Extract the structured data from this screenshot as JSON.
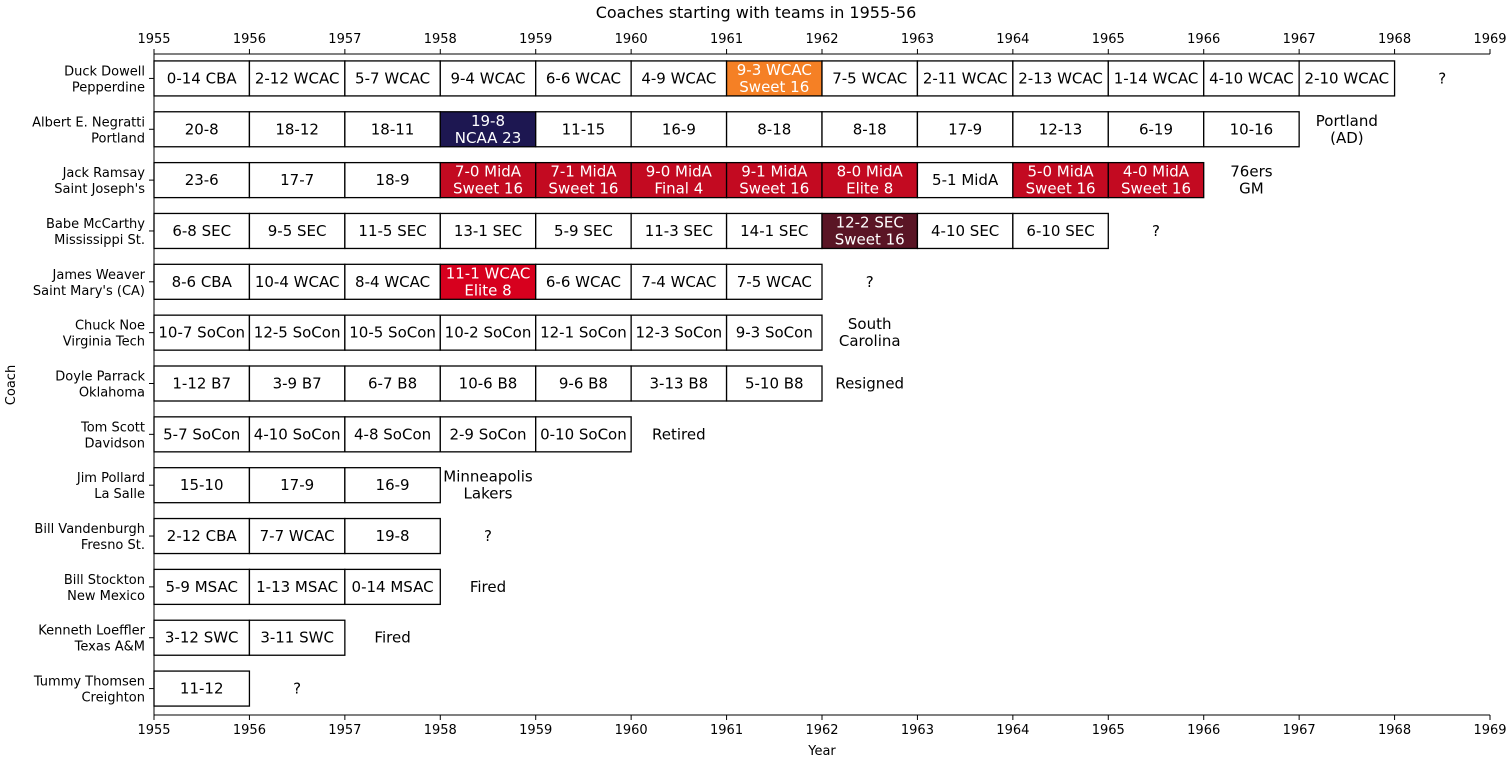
{
  "chart_data": {
    "type": "timeline",
    "title": "Coaches starting with teams in 1955-56",
    "xlabel": "Year",
    "ylabel": "Coach",
    "xlim": [
      1955,
      1969
    ],
    "x_ticks": [
      "1955",
      "1956",
      "1957",
      "1958",
      "1959",
      "1960",
      "1961",
      "1962",
      "1963",
      "1964",
      "1965",
      "1966",
      "1967",
      "1968",
      "1969"
    ],
    "colors": {
      "default": "#ffffff",
      "sweet16_wcac": "#f58025",
      "ncaa23": "#1d1751",
      "midA": "#c30a21",
      "sec_sweet16": "#5a1525",
      "wcac_elite8": "#d7001e"
    },
    "coaches": [
      {
        "name": "Duck Dowell",
        "team": "Pepperdine",
        "after": "?",
        "seasons": [
          {
            "start": 1955,
            "text": [
              "0-14 CBA"
            ]
          },
          {
            "start": 1956,
            "text": [
              "2-12 WCAC"
            ]
          },
          {
            "start": 1957,
            "text": [
              "5-7 WCAC"
            ]
          },
          {
            "start": 1958,
            "text": [
              "9-4 WCAC"
            ]
          },
          {
            "start": 1959,
            "text": [
              "6-6 WCAC"
            ]
          },
          {
            "start": 1960,
            "text": [
              "4-9 WCAC"
            ]
          },
          {
            "start": 1961,
            "text": [
              "9-3 WCAC",
              "Sweet 16"
            ],
            "color": "#f58025",
            "light": true
          },
          {
            "start": 1962,
            "text": [
              "7-5 WCAC"
            ]
          },
          {
            "start": 1963,
            "text": [
              "2-11 WCAC"
            ]
          },
          {
            "start": 1964,
            "text": [
              "2-13 WCAC"
            ]
          },
          {
            "start": 1965,
            "text": [
              "1-14 WCAC"
            ]
          },
          {
            "start": 1966,
            "text": [
              "4-10 WCAC"
            ]
          },
          {
            "start": 1967,
            "text": [
              "2-10 WCAC"
            ]
          }
        ]
      },
      {
        "name": "Albert E. Negratti",
        "team": "Portland",
        "after": "Portland\n(AD)",
        "seasons": [
          {
            "start": 1955,
            "text": [
              "20-8"
            ]
          },
          {
            "start": 1956,
            "text": [
              "18-12"
            ]
          },
          {
            "start": 1957,
            "text": [
              "18-11"
            ]
          },
          {
            "start": 1958,
            "text": [
              "19-8",
              "NCAA 23"
            ],
            "color": "#1d1751",
            "light": true
          },
          {
            "start": 1959,
            "text": [
              "11-15"
            ]
          },
          {
            "start": 1960,
            "text": [
              "16-9"
            ]
          },
          {
            "start": 1961,
            "text": [
              "8-18"
            ]
          },
          {
            "start": 1962,
            "text": [
              "8-18"
            ]
          },
          {
            "start": 1963,
            "text": [
              "17-9"
            ]
          },
          {
            "start": 1964,
            "text": [
              "12-13"
            ]
          },
          {
            "start": 1965,
            "text": [
              "6-19"
            ]
          },
          {
            "start": 1966,
            "text": [
              "10-16"
            ]
          }
        ]
      },
      {
        "name": "Jack Ramsay",
        "team": "Saint Joseph's",
        "after": "76ers\nGM",
        "seasons": [
          {
            "start": 1955,
            "text": [
              "23-6"
            ]
          },
          {
            "start": 1956,
            "text": [
              "17-7"
            ]
          },
          {
            "start": 1957,
            "text": [
              "18-9"
            ]
          },
          {
            "start": 1958,
            "text": [
              "7-0 MidA",
              "Sweet 16"
            ],
            "color": "#c30a21",
            "light": true
          },
          {
            "start": 1959,
            "text": [
              "7-1 MidA",
              "Sweet 16"
            ],
            "color": "#c30a21",
            "light": true
          },
          {
            "start": 1960,
            "text": [
              "9-0 MidA",
              "Final 4"
            ],
            "color": "#c30a21",
            "light": true
          },
          {
            "start": 1961,
            "text": [
              "9-1 MidA",
              "Sweet 16"
            ],
            "color": "#c30a21",
            "light": true
          },
          {
            "start": 1962,
            "text": [
              "8-0 MidA",
              "Elite 8"
            ],
            "color": "#c30a21",
            "light": true
          },
          {
            "start": 1963,
            "text": [
              "5-1 MidA"
            ]
          },
          {
            "start": 1964,
            "text": [
              "5-0 MidA",
              "Sweet 16"
            ],
            "color": "#c30a21",
            "light": true
          },
          {
            "start": 1965,
            "text": [
              "4-0 MidA",
              "Sweet 16"
            ],
            "color": "#c30a21",
            "light": true
          }
        ]
      },
      {
        "name": "Babe McCarthy",
        "team": "Mississippi St.",
        "after": "?",
        "seasons": [
          {
            "start": 1955,
            "text": [
              "6-8 SEC"
            ]
          },
          {
            "start": 1956,
            "text": [
              "9-5 SEC"
            ]
          },
          {
            "start": 1957,
            "text": [
              "11-5 SEC"
            ]
          },
          {
            "start": 1958,
            "text": [
              "13-1 SEC"
            ]
          },
          {
            "start": 1959,
            "text": [
              "5-9 SEC"
            ]
          },
          {
            "start": 1960,
            "text": [
              "11-3 SEC"
            ]
          },
          {
            "start": 1961,
            "text": [
              "14-1 SEC"
            ]
          },
          {
            "start": 1962,
            "text": [
              "12-2 SEC",
              "Sweet 16"
            ],
            "color": "#5a1525",
            "light": true
          },
          {
            "start": 1963,
            "text": [
              "4-10 SEC"
            ]
          },
          {
            "start": 1964,
            "text": [
              "6-10 SEC"
            ]
          }
        ]
      },
      {
        "name": "James Weaver",
        "team": "Saint Mary's (CA)",
        "after": "?",
        "seasons": [
          {
            "start": 1955,
            "text": [
              "8-6 CBA"
            ]
          },
          {
            "start": 1956,
            "text": [
              "10-4 WCAC"
            ]
          },
          {
            "start": 1957,
            "text": [
              "8-4 WCAC"
            ]
          },
          {
            "start": 1958,
            "text": [
              "11-1 WCAC",
              "Elite 8"
            ],
            "color": "#d7001e",
            "light": true
          },
          {
            "start": 1959,
            "text": [
              "6-6 WCAC"
            ]
          },
          {
            "start": 1960,
            "text": [
              "7-4 WCAC"
            ]
          },
          {
            "start": 1961,
            "text": [
              "7-5 WCAC"
            ]
          }
        ]
      },
      {
        "name": "Chuck Noe",
        "team": "Virginia Tech",
        "after": "South\nCarolina",
        "seasons": [
          {
            "start": 1955,
            "text": [
              "10-7 SoCon"
            ]
          },
          {
            "start": 1956,
            "text": [
              "12-5 SoCon"
            ]
          },
          {
            "start": 1957,
            "text": [
              "10-5 SoCon"
            ]
          },
          {
            "start": 1958,
            "text": [
              "10-2 SoCon"
            ]
          },
          {
            "start": 1959,
            "text": [
              "12-1 SoCon"
            ]
          },
          {
            "start": 1960,
            "text": [
              "12-3 SoCon"
            ]
          },
          {
            "start": 1961,
            "text": [
              "9-3 SoCon"
            ]
          }
        ]
      },
      {
        "name": "Doyle Parrack",
        "team": "Oklahoma",
        "after": "Resigned",
        "seasons": [
          {
            "start": 1955,
            "text": [
              "1-12 B7"
            ]
          },
          {
            "start": 1956,
            "text": [
              "3-9 B7"
            ]
          },
          {
            "start": 1957,
            "text": [
              "6-7 B8"
            ]
          },
          {
            "start": 1958,
            "text": [
              "10-6 B8"
            ]
          },
          {
            "start": 1959,
            "text": [
              "9-6 B8"
            ]
          },
          {
            "start": 1960,
            "text": [
              "3-13 B8"
            ]
          },
          {
            "start": 1961,
            "text": [
              "5-10 B8"
            ]
          }
        ]
      },
      {
        "name": "Tom Scott",
        "team": "Davidson",
        "after": "Retired",
        "seasons": [
          {
            "start": 1955,
            "text": [
              "5-7 SoCon"
            ]
          },
          {
            "start": 1956,
            "text": [
              "4-10 SoCon"
            ]
          },
          {
            "start": 1957,
            "text": [
              "4-8 SoCon"
            ]
          },
          {
            "start": 1958,
            "text": [
              "2-9 SoCon"
            ]
          },
          {
            "start": 1959,
            "text": [
              "0-10 SoCon"
            ]
          }
        ]
      },
      {
        "name": "Jim Pollard",
        "team": "La Salle",
        "after": "Minneapolis\nLakers",
        "seasons": [
          {
            "start": 1955,
            "text": [
              "15-10"
            ]
          },
          {
            "start": 1956,
            "text": [
              "17-9"
            ]
          },
          {
            "start": 1957,
            "text": [
              "16-9"
            ]
          }
        ]
      },
      {
        "name": "Bill Vandenburgh",
        "team": "Fresno St.",
        "after": "?",
        "seasons": [
          {
            "start": 1955,
            "text": [
              "2-12 CBA"
            ]
          },
          {
            "start": 1956,
            "text": [
              "7-7 WCAC"
            ]
          },
          {
            "start": 1957,
            "text": [
              "19-8"
            ]
          }
        ]
      },
      {
        "name": "Bill Stockton",
        "team": "New Mexico",
        "after": "Fired",
        "seasons": [
          {
            "start": 1955,
            "text": [
              "5-9 MSAC"
            ]
          },
          {
            "start": 1956,
            "text": [
              "1-13 MSAC"
            ]
          },
          {
            "start": 1957,
            "text": [
              "0-14 MSAC"
            ]
          }
        ]
      },
      {
        "name": "Kenneth Loeffler",
        "team": "Texas A&M",
        "after": "Fired",
        "seasons": [
          {
            "start": 1955,
            "text": [
              "3-12 SWC"
            ]
          },
          {
            "start": 1956,
            "text": [
              "3-11 SWC"
            ]
          }
        ]
      },
      {
        "name": "Tummy Thomsen",
        "team": "Creighton",
        "after": "?",
        "seasons": [
          {
            "start": 1955,
            "text": [
              "11-12"
            ]
          }
        ]
      }
    ]
  }
}
